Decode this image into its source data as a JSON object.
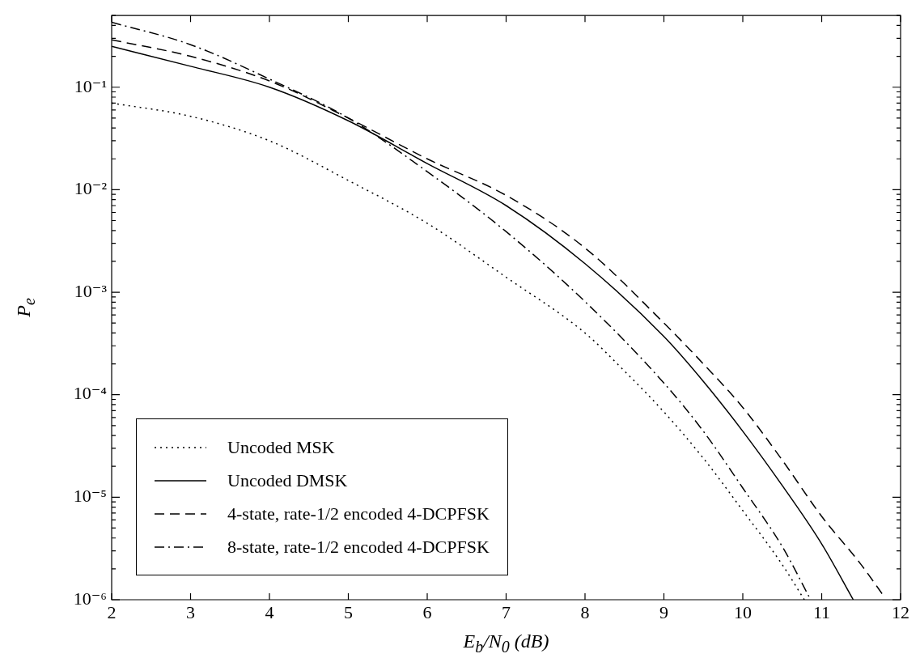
{
  "chart_data": {
    "type": "line",
    "xlabel": "E$_{b}$/N$_{0}$ (dB)",
    "ylabel": "P$_{e}$",
    "log": "y",
    "grid": false,
    "legend": "bottom left",
    "marker": "none",
    "xlim": [
      2,
      12
    ],
    "xticks": [
      2,
      3,
      4,
      5,
      6,
      7,
      8,
      9,
      10,
      11,
      12
    ],
    "ylim": [
      1e-06,
      0.5
    ],
    "yticks": [
      {
        "value": 1e-06,
        "label": "10⁻⁶"
      },
      {
        "value": 2e-06,
        "label": null
      },
      {
        "value": 3e-06,
        "label": null
      },
      {
        "value": 4e-06,
        "label": null
      },
      {
        "value": 5e-06,
        "label": null
      },
      {
        "value": 6e-06,
        "label": null
      },
      {
        "value": 7e-06,
        "label": null
      },
      {
        "value": 8e-06,
        "label": null
      },
      {
        "value": 9e-06,
        "label": null
      },
      {
        "value": 1e-05,
        "label": "10⁻⁵"
      },
      {
        "value": 2e-05,
        "label": null
      },
      {
        "value": 3e-05,
        "label": null
      },
      {
        "value": 4e-05,
        "label": null
      },
      {
        "value": 5e-05,
        "label": null
      },
      {
        "value": 6e-05,
        "label": null
      },
      {
        "value": 7e-05,
        "label": null
      },
      {
        "value": 8e-05,
        "label": null
      },
      {
        "value": 9e-05,
        "label": null
      },
      {
        "value": 0.0001,
        "label": "10⁻⁴"
      },
      {
        "value": 0.0002,
        "label": null
      },
      {
        "value": 0.0003,
        "label": null
      },
      {
        "value": 0.0004,
        "label": null
      },
      {
        "value": 0.0005,
        "label": null
      },
      {
        "value": 0.0006,
        "label": null
      },
      {
        "value": 0.0007,
        "label": null
      },
      {
        "value": 0.0008,
        "label": null
      },
      {
        "value": 0.0009,
        "label": null
      },
      {
        "value": 0.001,
        "label": "10⁻³"
      },
      {
        "value": 0.002,
        "label": null
      },
      {
        "value": 0.003,
        "label": null
      },
      {
        "value": 0.004,
        "label": null
      },
      {
        "value": 0.005,
        "label": null
      },
      {
        "value": 0.006,
        "label": null
      },
      {
        "value": 0.007,
        "label": null
      },
      {
        "value": 0.008,
        "label": null
      },
      {
        "value": 0.009,
        "label": null
      },
      {
        "value": 0.01,
        "label": "10⁻²"
      },
      {
        "value": 0.02,
        "label": null
      },
      {
        "value": 0.03,
        "label": null
      },
      {
        "value": 0.04,
        "label": null
      },
      {
        "value": 0.05,
        "label": null
      },
      {
        "value": 0.06,
        "label": null
      },
      {
        "value": 0.07,
        "label": null
      },
      {
        "value": 0.08,
        "label": null
      },
      {
        "value": 0.09,
        "label": null
      },
      {
        "value": 0.1,
        "label": "10⁻¹"
      },
      {
        "value": 0.2,
        "label": null
      },
      {
        "value": 0.3,
        "label": null
      },
      {
        "value": 0.4,
        "label": null
      },
      {
        "value": 0.5,
        "label": null
      }
    ],
    "series": [
      {
        "name": "Uncoded MSK",
        "color": "#000000",
        "line_style": "dotted",
        "x": [
          2,
          3,
          4,
          5,
          6,
          7,
          8,
          8.5,
          9,
          9.5,
          10,
          10.5,
          10.78
        ],
        "values": [
          0.07,
          0.052,
          0.03,
          0.0123,
          0.0047,
          0.0014,
          0.0004,
          0.00017,
          6.8e-05,
          2.4e-05,
          7.4e-06,
          2.2e-06,
          1e-06
        ]
      },
      {
        "name": "Uncoded DMSK",
        "color": "#000000",
        "line_style": "solid",
        "x": [
          2,
          3,
          4,
          5,
          6,
          7,
          8,
          9,
          9.5,
          10,
          10.5,
          11,
          11.4
        ],
        "values": [
          0.25,
          0.16,
          0.1,
          0.047,
          0.018,
          0.007,
          0.0019,
          0.00037,
          0.000135,
          4.4e-05,
          1.3e-05,
          3.5e-06,
          1e-06
        ]
      },
      {
        "name": "4-state, rate-1/2 encoded 4-DCPFSK",
        "color": "#000000",
        "line_style": "dashed",
        "x": [
          2,
          3,
          4,
          5,
          6,
          7,
          8,
          9,
          9.5,
          10,
          10.5,
          11,
          11.5,
          11.8
        ],
        "values": [
          0.29,
          0.2,
          0.115,
          0.05,
          0.02,
          0.0088,
          0.0027,
          0.0005,
          0.0002,
          7.5e-05,
          2.3e-05,
          6.5e-06,
          2.2e-06,
          1.05e-06
        ]
      },
      {
        "name": "8-state, rate-1/2 encoded 4-DCPFSK",
        "color": "#000000",
        "line_style": "dashdot",
        "x": [
          2,
          3,
          4,
          5,
          6,
          7,
          8,
          9,
          9.5,
          10,
          10.5,
          10.86
        ],
        "values": [
          0.43,
          0.26,
          0.12,
          0.05,
          0.015,
          0.0039,
          0.00081,
          0.00013,
          4.4e-05,
          1.23e-05,
          3.3e-06,
          1e-06
        ]
      }
    ]
  }
}
